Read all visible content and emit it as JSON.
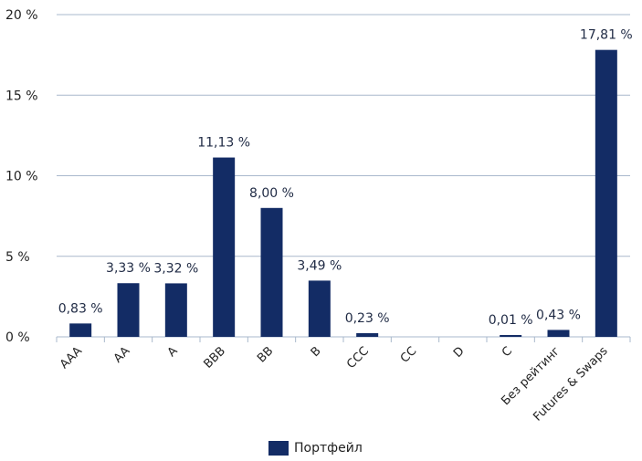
{
  "chart_data": {
    "type": "bar",
    "categories": [
      "AAA",
      "AA",
      "A",
      "BBB",
      "BB",
      "B",
      "CCC",
      "CC",
      "D",
      "C",
      "Без рейтинг",
      "Futures & Swaps"
    ],
    "series": [
      {
        "name": "Портфейл",
        "values": [
          0.83,
          3.33,
          3.32,
          11.13,
          8.0,
          3.49,
          0.23,
          0,
          0,
          0.01,
          0.43,
          17.81
        ],
        "labels": [
          "0,83 %",
          "3,33 %",
          "3,32 %",
          "11,13 %",
          "8,00 %",
          "3,49 %",
          "0,23 %",
          "",
          "",
          "0,01 %",
          "0,43 %",
          "17,81 %"
        ],
        "color": "#132c65"
      }
    ],
    "ylim": [
      0,
      20
    ],
    "yticks": [
      0,
      5,
      10,
      15,
      20
    ],
    "ytick_labels": [
      "0 %",
      "5 %",
      "10 %",
      "15 %",
      "20 %"
    ],
    "grid": true,
    "legend_position": "bottom",
    "gridline_color": "#a9b8cc"
  }
}
